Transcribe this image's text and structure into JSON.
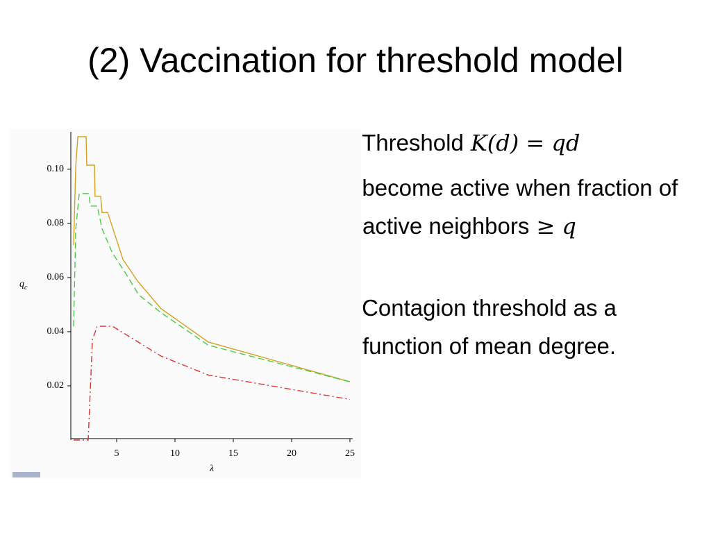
{
  "title": "(2) Vaccination for threshold model",
  "bullets": [
    {
      "text": "Threshold",
      "math": "K(d) = qd"
    },
    {
      "text": "-> become active when fraction  of active neighbors",
      "math": "≥ q"
    },
    {
      "text": "Contagion threshold as a function of mean degree."
    }
  ],
  "chart_data": {
    "type": "line",
    "xlabel": "λ",
    "ylabel": "q",
    "ylabel_subscript": "c",
    "xlim": [
      1.07,
      25.24
    ],
    "xticks": [
      5,
      10,
      15,
      20,
      25
    ],
    "ylim": [
      0,
      0.1138
    ],
    "yticks": [
      0.02,
      0.04,
      0.06,
      0.08,
      {
        "value": 0.1,
        "label": "0.10"
      }
    ],
    "series": [
      {
        "color": "#d4a020",
        "style": "solid",
        "x": [
          1.31,
          1.49,
          1.67,
          2.38,
          2.44,
          3.1,
          3.15,
          3.63,
          3.75,
          4.23,
          5.54,
          6.79,
          8.81,
          12.86,
          25
        ],
        "values": [
          0.072,
          0.101,
          0.112,
          0.112,
          0.1015,
          0.1015,
          0.09,
          0.09,
          0.084,
          0.084,
          0.0667,
          0.0587,
          0.0485,
          0.0362,
          0.0215
        ]
      },
      {
        "color": "#44cc44",
        "style": "dashed",
        "x": [
          1.31,
          1.49,
          1.79,
          2.62,
          2.74,
          3.33,
          3.75,
          4.64,
          5.71,
          6.9,
          8.81,
          12.86,
          25
        ],
        "values": [
          0.042,
          0.078,
          0.091,
          0.091,
          0.0864,
          0.0864,
          0.078,
          0.069,
          0.062,
          0.0536,
          0.047,
          0.035,
          0.0215
        ]
      },
      {
        "color": "#e03030",
        "style": "dashdot",
        "x": [
          1.31,
          2.56,
          2.92,
          3.33,
          4.64,
          8.81,
          12.86,
          25
        ],
        "values": [
          0,
          0,
          0.037,
          0.042,
          0.042,
          0.031,
          0.024,
          0.015
        ]
      }
    ]
  }
}
